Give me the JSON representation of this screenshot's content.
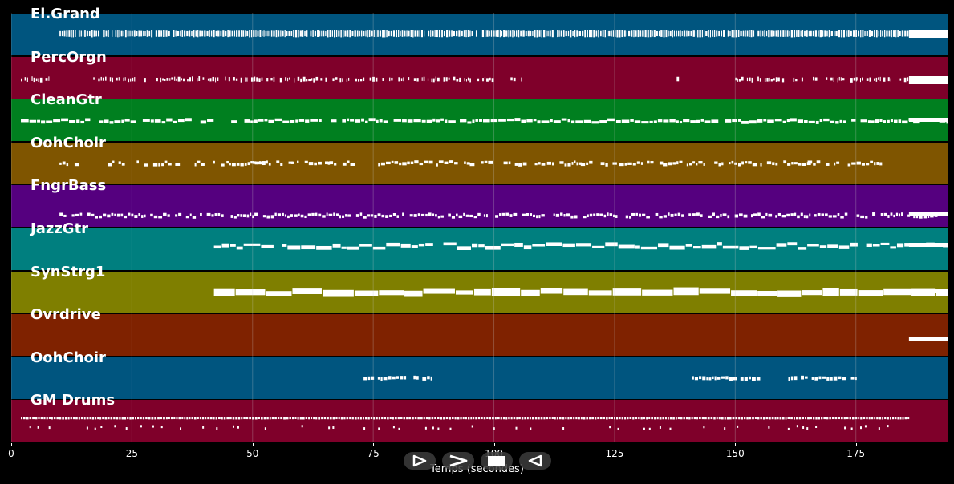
{
  "tracks": [
    {
      "name": "El.Grand",
      "color": "#00557f"
    },
    {
      "name": "PercOrgn",
      "color": "#7f002a"
    },
    {
      "name": "CleanGtr",
      "color": "#007f1f"
    },
    {
      "name": "OohChoir",
      "color": "#7f5500"
    },
    {
      "name": "FngrBass",
      "color": "#55007f"
    },
    {
      "name": "JazzGtr",
      "color": "#007f7f"
    },
    {
      "name": "SynStrg1",
      "color": "#7f7f00"
    },
    {
      "name": "Ovrdrive",
      "color": "#7f2200"
    },
    {
      "name": "OohChoir",
      "color": "#00557f"
    },
    {
      "name": "GM Drums",
      "color": "#7f002a"
    }
  ],
  "x_axis": {
    "label": "Temps (secondes)",
    "ticks": [
      "0",
      "25",
      "50",
      "75",
      "100",
      "125",
      "150",
      "175"
    ],
    "tick_values": [
      0,
      25,
      50,
      75,
      100,
      125,
      150,
      175
    ],
    "max": 194
  },
  "transport": {
    "buttons": [
      {
        "name": "play-icon"
      },
      {
        "name": "fast-forward-icon"
      },
      {
        "name": "stop-icon"
      },
      {
        "name": "rewind-icon"
      }
    ]
  }
}
